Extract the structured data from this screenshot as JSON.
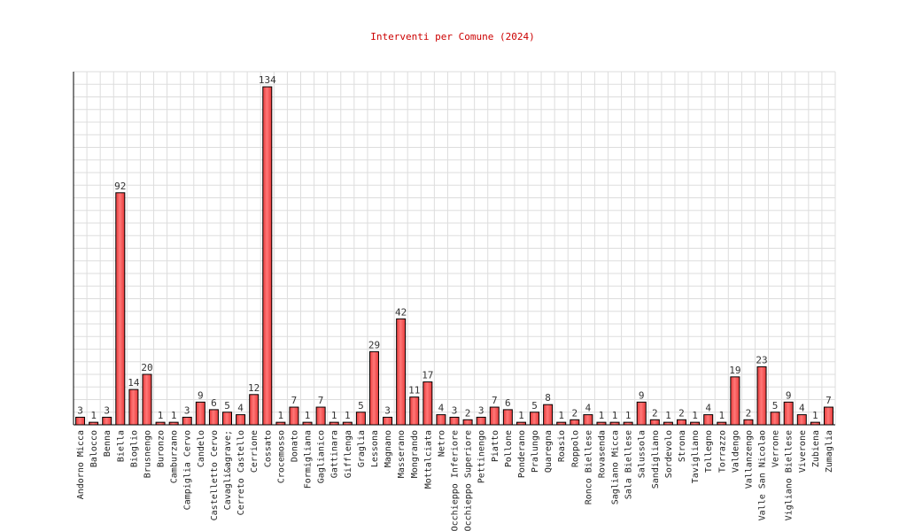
{
  "chart_data": {
    "type": "bar",
    "title": "Interventi per Comune (2024)",
    "xlabel": "",
    "ylabel": "",
    "ylim": [
      0,
      140
    ],
    "grid": true,
    "legend": "none",
    "categories": [
      "Andorno Micca",
      "Balocco",
      "Benna",
      "Biella",
      "Bioglio",
      "Brusnengo",
      "Buronzo",
      "Camburzano",
      "Campiglia Cervo",
      "Candelo",
      "Castelletto Cervo",
      "Cavagli&agrave;",
      "Cerreto Castello",
      "Cerrione",
      "Cossato",
      "Crocemosso",
      "Donato",
      "Formigliana",
      "Gaglianico",
      "Gattinara",
      "Gifflenga",
      "Graglia",
      "Lessona",
      "Magnano",
      "Masserano",
      "Mongrando",
      "Mottalciata",
      "Netro",
      "Occhieppo Inferiore",
      "Occhieppo Superiore",
      "Pettinengo",
      "Piatto",
      "Pollone",
      "Ponderano",
      "Pralungo",
      "Quaregna",
      "Roasio",
      "Roppolo",
      "Ronco Biellese",
      "Rovasenda",
      "Sagliano Micca",
      "Sala Biellese",
      "Salussola",
      "Sandigliano",
      "Sordevolo",
      "Strona",
      "Tavigliano",
      "Tollegno",
      "Torrazzo",
      "Valdengo",
      "Vallanzengo",
      "Valle San Nicolao",
      "Verrone",
      "Vigliano Biellese",
      "Viverone",
      "Zubiena",
      "Zumaglia"
    ],
    "values": [
      3,
      1,
      3,
      92,
      14,
      20,
      1,
      1,
      3,
      9,
      6,
      5,
      4,
      12,
      134,
      1,
      7,
      1,
      7,
      1,
      1,
      5,
      29,
      3,
      42,
      11,
      17,
      4,
      3,
      2,
      3,
      7,
      6,
      1,
      5,
      8,
      1,
      2,
      4,
      1,
      1,
      1,
      9,
      2,
      1,
      2,
      1,
      4,
      1,
      19,
      2,
      23,
      5,
      9,
      4,
      1,
      7
    ],
    "colors": {
      "title": "#cc0000",
      "bar_fill": "#e83a3a",
      "bar_highlight": "#ff7777",
      "bar_stroke": "#000000",
      "grid": "#dddddd",
      "axis": "#000000"
    }
  }
}
